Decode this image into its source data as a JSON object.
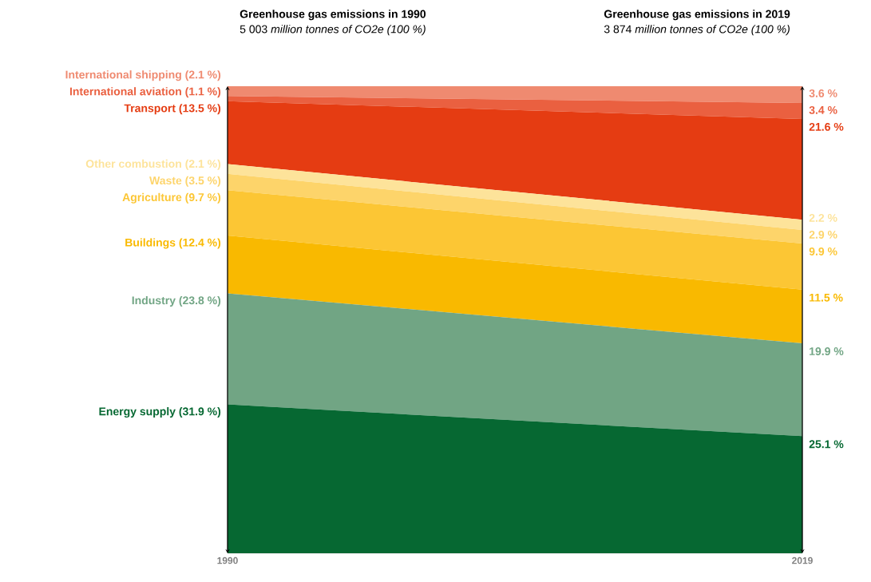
{
  "chart_data": {
    "type": "area",
    "stacked": true,
    "categories": [
      "1990",
      "2019"
    ],
    "series": [
      {
        "name": "Energy supply",
        "color": "#066832",
        "values": [
          31.9,
          25.1
        ],
        "value_labels": [
          "(31.9 %)",
          "25.1 %"
        ]
      },
      {
        "name": "Industry",
        "color": "#71a584",
        "values": [
          23.8,
          19.9
        ],
        "value_labels": [
          "(23.8 %)",
          "19.9 %"
        ]
      },
      {
        "name": "Buildings",
        "color": "#f9b900",
        "values": [
          12.4,
          11.5
        ],
        "value_labels": [
          "(12.4 %)",
          "11.5 %"
        ]
      },
      {
        "name": "Agriculture",
        "color": "#fcc634",
        "values": [
          9.7,
          9.9
        ],
        "value_labels": [
          "(9.7 %)",
          "9.9 %"
        ]
      },
      {
        "name": "Waste",
        "color": "#fdd46a",
        "values": [
          3.5,
          2.9
        ],
        "value_labels": [
          "(3.5 %)",
          "2.9 %"
        ]
      },
      {
        "name": "Other combustion",
        "color": "#fde39a",
        "values": [
          2.1,
          2.2
        ],
        "value_labels": [
          "(2.1 %)",
          "2.2 %"
        ]
      },
      {
        "name": "Transport",
        "color": "#e53c12",
        "values": [
          13.5,
          21.6
        ],
        "value_labels": [
          "(13.5 %)",
          "21.6 %"
        ]
      },
      {
        "name": "International aviation",
        "color": "#ea6040",
        "values": [
          1.1,
          3.4
        ],
        "value_labels": [
          "(1.1 %)",
          "3.4 %"
        ]
      },
      {
        "name": "International shipping",
        "color": "#ef8a70",
        "values": [
          2.1,
          3.6
        ],
        "value_labels": [
          "(2.1 %)",
          "3.6 %"
        ]
      }
    ],
    "annotations": [
      "Greenhouse gas emissions in 1990",
      "5 003 *million tonnes of CO2e (100 %)*",
      "Greenhouse gas emissions in 2019",
      "3 874 *million tonnes of CO2e (100 %)*"
    ]
  }
}
